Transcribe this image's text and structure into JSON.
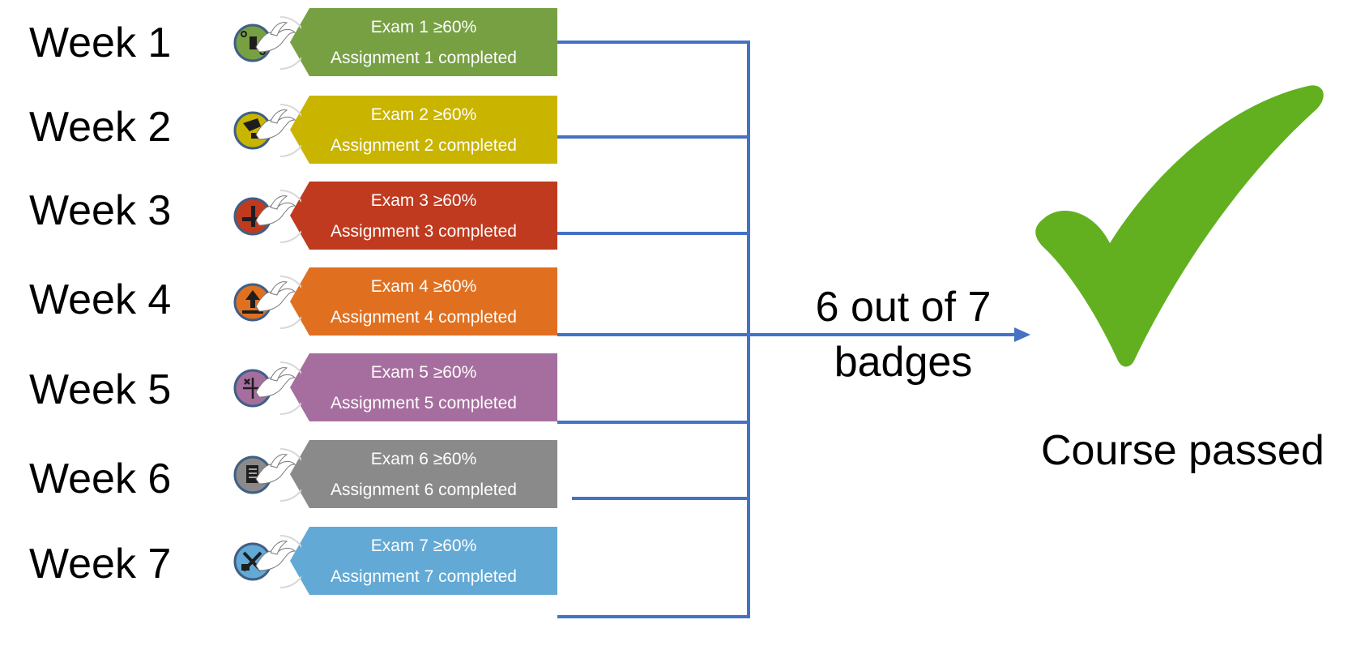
{
  "weeks": [
    {
      "label": "Week 1",
      "exam": "Exam 1 ≥60%",
      "assignment": "Assignment 1 completed",
      "color": "#77A043",
      "icon": "circuit-icon"
    },
    {
      "label": "Week 2",
      "exam": "Exam 2 ≥60%",
      "assignment": "Assignment 2 completed",
      "color": "#C9B400",
      "icon": "tools-icon"
    },
    {
      "label": "Week 3",
      "exam": "Exam 3 ≥60%",
      "assignment": "Assignment 3 completed",
      "color": "#BF3A1F",
      "icon": "wrench-icon"
    },
    {
      "label": "Week 4",
      "exam": "Exam 4 ≥60%",
      "assignment": "Assignment 4 completed",
      "color": "#E07020",
      "icon": "upload-icon"
    },
    {
      "label": "Week 5",
      "exam": "Exam 5 ≥60%",
      "assignment": "Assignment 5 completed",
      "color": "#A66E9E",
      "icon": "grid-math-icon"
    },
    {
      "label": "Week 6",
      "exam": "Exam 6 ≥60%",
      "assignment": "Assignment 6 completed",
      "color": "#8A8A8A",
      "icon": "document-icon"
    },
    {
      "label": "Week 7",
      "exam": "Exam 7 ≥60%",
      "assignment": "Assignment 7 completed",
      "color": "#63A9D5",
      "icon": "spanner-icon"
    }
  ],
  "summary": {
    "line1": "6 out of 7",
    "line2": "badges"
  },
  "result": {
    "label": "Course passed",
    "check_color": "#62B020"
  },
  "connector_color": "#4472C4"
}
